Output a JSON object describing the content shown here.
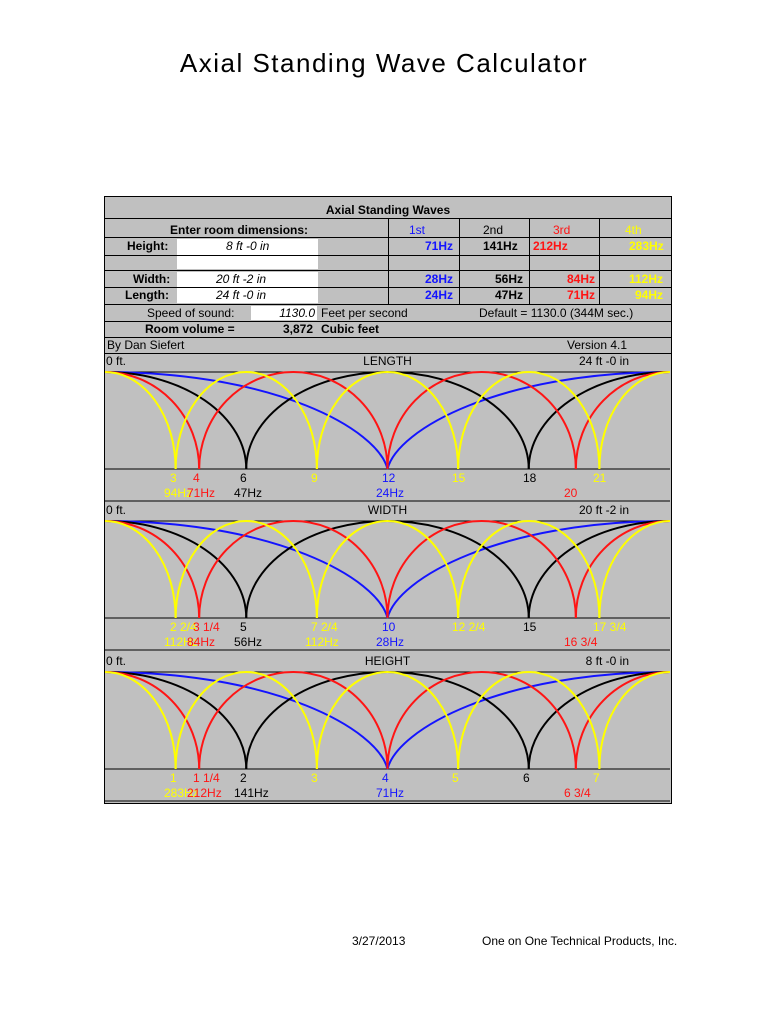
{
  "title": "Axial Standing Wave Calculator",
  "sheet": {
    "header": "Axial Standing Waves",
    "enter_label": "Enter room dimensions:",
    "order_labels": [
      "1st",
      "2nd",
      "3rd",
      "4th"
    ],
    "height_label": "Height:",
    "height_value": "8 ft  -0 in",
    "width_label": "Width:",
    "width_value": "20 ft  -2 in",
    "length_label": "Length:",
    "length_value": "24 ft  -0 in",
    "height_freqs": [
      "71Hz",
      "141Hz",
      "212Hz",
      "283Hz"
    ],
    "width_freqs": [
      "28Hz",
      "56Hz",
      "84Hz",
      "112Hz"
    ],
    "length_freqs": [
      "24Hz",
      "47Hz",
      "71Hz",
      "94Hz"
    ],
    "speed_label": "Speed of sound:",
    "speed_value": "1130.0",
    "speed_unit": "Feet per second",
    "speed_default": "Default = 1130.0 (344M sec.)",
    "volume_label": "Room volume =",
    "volume_value": "3,872",
    "volume_unit": "Cubic feet",
    "author": "By Dan Siefert",
    "version": "Version 4.1"
  },
  "colors": {
    "blue": "#1414ff",
    "red": "#ff1414",
    "yellow": "#ffff00",
    "black": "#000000",
    "bg": "#c0c0c0"
  },
  "plots": [
    {
      "name": "LENGTH",
      "start_label": "0 ft.",
      "end_label": "24 ft -0 in",
      "markers": [
        {
          "text": "3",
          "color": "yellow",
          "frac": 0.125
        },
        {
          "text": "4",
          "color": "red",
          "frac": 0.1667
        },
        {
          "text": "6",
          "color": "black",
          "frac": 0.25
        },
        {
          "text": "9",
          "color": "yellow",
          "frac": 0.375
        },
        {
          "text": "12",
          "color": "blue",
          "frac": 0.5
        },
        {
          "text": "15",
          "color": "yellow",
          "frac": 0.625
        },
        {
          "text": "18",
          "color": "black",
          "frac": 0.75
        },
        {
          "text": "21",
          "color": "yellow",
          "frac": 0.875
        }
      ],
      "freqs": [
        {
          "text": "94Hz",
          "color": "yellow",
          "frac": 0.125
        },
        {
          "text": "71Hz",
          "color": "red",
          "frac": 0.1667
        },
        {
          "text": "47Hz",
          "color": "black",
          "frac": 0.25
        },
        {
          "text": "24Hz",
          "color": "blue",
          "frac": 0.5
        },
        {
          "text": "20",
          "color": "red",
          "frac": 0.8333
        }
      ]
    },
    {
      "name": "WIDTH",
      "start_label": "0 ft.",
      "end_label": "20 ft -2 in",
      "markers": [
        {
          "text": "2 2/4",
          "color": "yellow",
          "frac": 0.125
        },
        {
          "text": "3 1/4",
          "color": "red",
          "frac": 0.1667
        },
        {
          "text": "5",
          "color": "black",
          "frac": 0.25
        },
        {
          "text": "7 2/4",
          "color": "yellow",
          "frac": 0.375
        },
        {
          "text": "10",
          "color": "blue",
          "frac": 0.5
        },
        {
          "text": "12 2/4",
          "color": "yellow",
          "frac": 0.625
        },
        {
          "text": "15",
          "color": "black",
          "frac": 0.75
        },
        {
          "text": "17 3/4",
          "color": "yellow",
          "frac": 0.875
        }
      ],
      "freqs": [
        {
          "text": "112Hz",
          "color": "yellow",
          "frac": 0.125
        },
        {
          "text": "84Hz",
          "color": "red",
          "frac": 0.1667
        },
        {
          "text": "56Hz",
          "color": "black",
          "frac": 0.25
        },
        {
          "text": "112Hz",
          "color": "yellow",
          "frac": 0.375
        },
        {
          "text": "28Hz",
          "color": "blue",
          "frac": 0.5
        },
        {
          "text": "16 3/4",
          "color": "red",
          "frac": 0.8333
        }
      ]
    },
    {
      "name": "HEIGHT",
      "start_label": "0 ft.",
      "end_label": "8 ft -0 in",
      "markers": [
        {
          "text": "1",
          "color": "yellow",
          "frac": 0.125
        },
        {
          "text": "1 1/4",
          "color": "red",
          "frac": 0.1667
        },
        {
          "text": "2",
          "color": "black",
          "frac": 0.25
        },
        {
          "text": "3",
          "color": "yellow",
          "frac": 0.375
        },
        {
          "text": "4",
          "color": "blue",
          "frac": 0.5
        },
        {
          "text": "5",
          "color": "yellow",
          "frac": 0.625
        },
        {
          "text": "6",
          "color": "black",
          "frac": 0.75
        },
        {
          "text": "7",
          "color": "yellow",
          "frac": 0.875
        }
      ],
      "freqs": [
        {
          "text": "283Hz",
          "color": "yellow",
          "frac": 0.125
        },
        {
          "text": "212Hz",
          "color": "red",
          "frac": 0.1667
        },
        {
          "text": "141Hz",
          "color": "black",
          "frac": 0.25
        },
        {
          "text": "71Hz",
          "color": "blue",
          "frac": 0.5
        },
        {
          "text": "6 3/4",
          "color": "red",
          "frac": 0.8333
        }
      ]
    }
  ],
  "footer": {
    "date": "3/27/2013",
    "company": "One on One Technical Products, Inc."
  }
}
